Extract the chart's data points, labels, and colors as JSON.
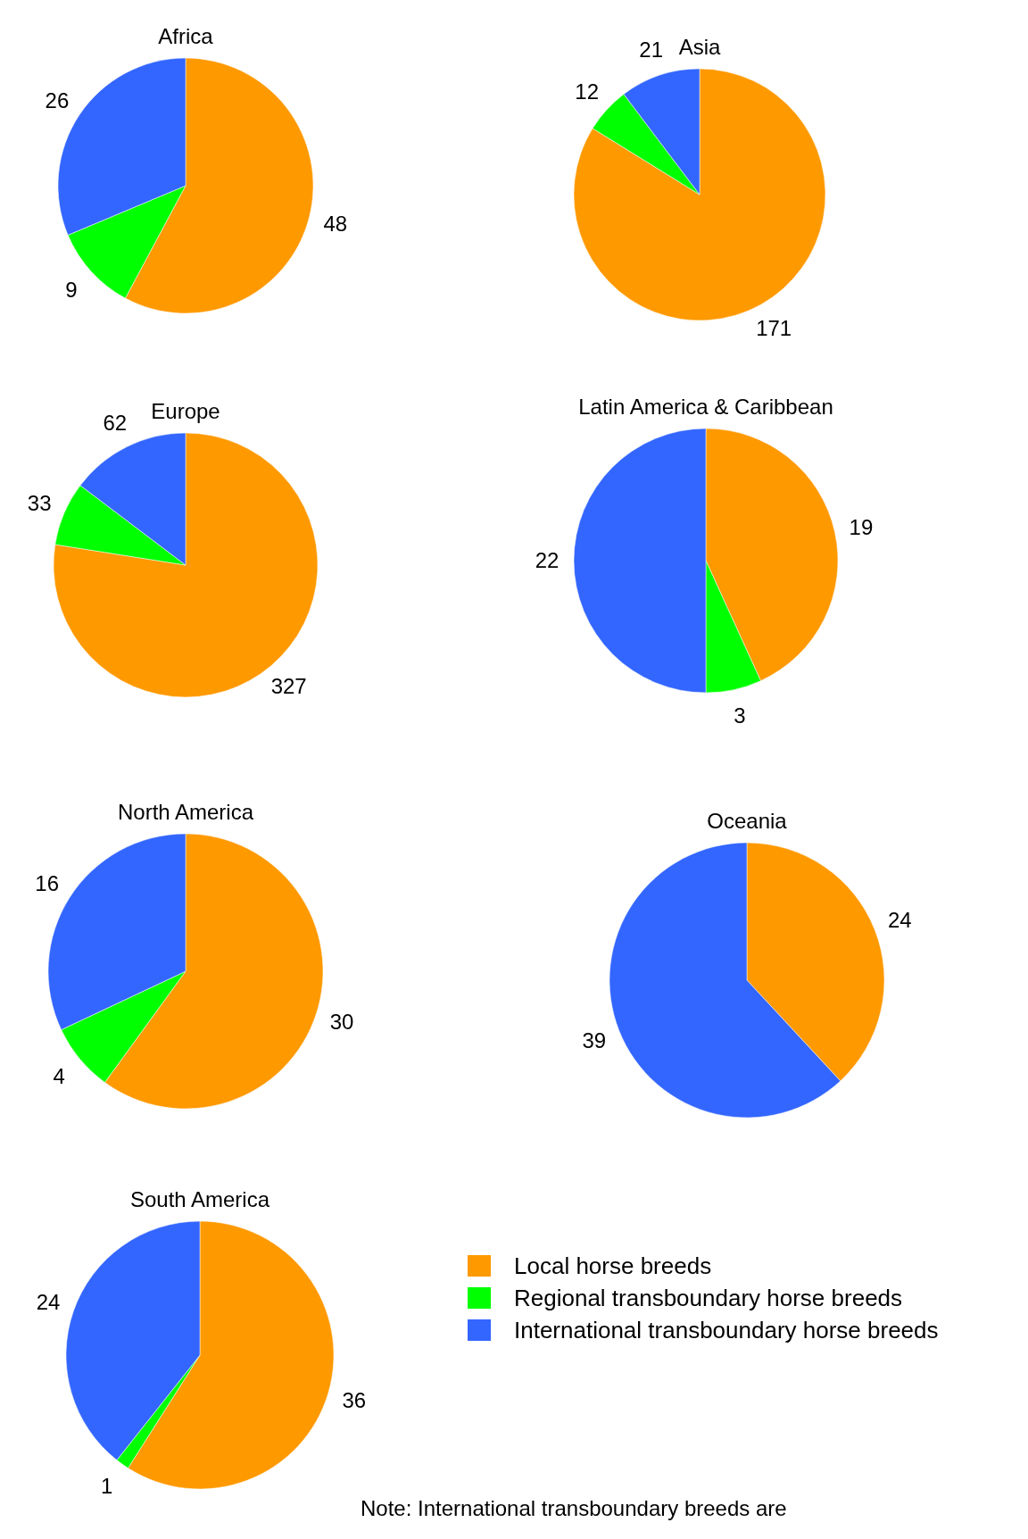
{
  "chart_data": [
    {
      "type": "pie",
      "title": "Africa",
      "categories": [
        null,
        null,
        null
      ],
      "values": [
        48,
        9,
        26
      ],
      "colors": [
        "#ff9900",
        "#00ff00",
        "#3366ff"
      ],
      "data_labels": true
    },
    {
      "type": "pie",
      "title": "Asia",
      "categories": [
        null,
        null,
        null
      ],
      "values": [
        171,
        12,
        21
      ],
      "colors": [
        "#ff9900",
        "#00ff00",
        "#3366ff"
      ],
      "data_labels": true
    },
    {
      "type": "pie",
      "title": "Europe",
      "categories": [
        null,
        null,
        null
      ],
      "values": [
        327,
        33,
        62
      ],
      "colors": [
        "#ff9900",
        "#00ff00",
        "#3366ff"
      ],
      "data_labels": true
    },
    {
      "type": "pie",
      "title": "Latin America & Caribbean",
      "categories": [
        null,
        null,
        null
      ],
      "values": [
        19,
        3,
        22
      ],
      "colors": [
        "#ff9900",
        "#00ff00",
        "#3366ff"
      ],
      "data_labels": true
    },
    {
      "type": "pie",
      "title": "North America",
      "categories": [
        null,
        null,
        null
      ],
      "values": [
        30,
        4,
        16
      ],
      "colors": [
        "#ff9900",
        "#00ff00",
        "#3366ff"
      ],
      "data_labels": true
    },
    {
      "type": "pie",
      "title": "Oceania",
      "categories": [
        null,
        null,
        null
      ],
      "values": [
        24,
        null,
        39
      ],
      "data_labels": true,
      "colors": [
        "#ff9900",
        null,
        "#3366ff"
      ]
    },
    {
      "type": "pie",
      "title": "South America",
      "categories": [
        "Local horse breeds",
        "Regional transboundary horse breeds",
        "International transboundary horse breeds"
      ],
      "values": [
        36,
        1,
        24
      ],
      "colors": [
        "#ff9900",
        "#00ff00",
        "#3366ff"
      ],
      "data_labels": true,
      "legend": "right",
      "annotations": [
        "Note: International transboundary breeds are"
      ]
    }
  ]
}
